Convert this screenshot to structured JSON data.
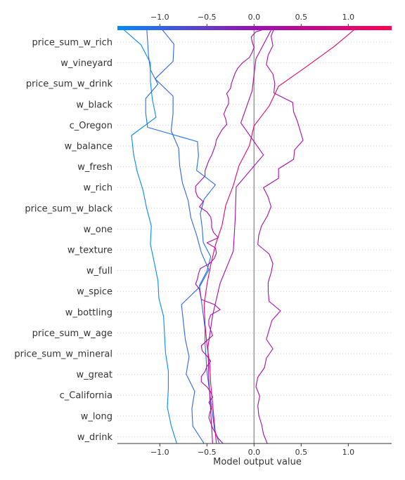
{
  "chart_data": {
    "type": "line",
    "title": "",
    "xlabel": "Model output value",
    "ylabel": "",
    "xlim": [
      -1.45,
      1.46
    ],
    "base_value": 0.0,
    "grid": "dotted horizontal per feature",
    "xticks": [
      -1.0,
      -0.5,
      0.0,
      0.5,
      1.0
    ],
    "xtick_labels": [
      "−1.0",
      "−0.5",
      "0.0",
      "0.5",
      "1.0"
    ],
    "features_top_to_bottom": [
      "price_sum_w_rich",
      "w_vineyard",
      "price_sum_w_drink",
      "w_black",
      "c_Oregon",
      "w_balance",
      "w_fresh",
      "w_rich",
      "price_sum_w_black",
      "w_one",
      "w_texture",
      "w_full",
      "w_spice",
      "w_bottling",
      "price_sum_w_age",
      "price_sum_w_mineral",
      "w_great",
      "c_California",
      "w_long",
      "w_drink"
    ],
    "colormap": {
      "low": "#008bfb",
      "mid": "#9a0eb5",
      "high": "#ff0052"
    },
    "series": [
      {
        "values": [
          -0.82,
          -0.88,
          -0.92,
          -0.91,
          -0.91,
          -0.94,
          -0.95,
          -0.96,
          -1.01,
          -1.02,
          -1.06,
          -1.1,
          -1.09,
          -1.14,
          -1.18,
          -1.24,
          -1.28,
          -1.3,
          -1.04,
          -1.08,
          -1.1,
          -1.1,
          -1.2,
          -1.42
        ]
      },
      {
        "values": [
          -0.53,
          -0.65,
          -0.66,
          -0.63,
          -0.72,
          -0.69,
          -0.73,
          -0.75,
          -0.77,
          -0.58,
          -0.48,
          -0.56,
          -0.61,
          -0.67,
          -0.7,
          -0.76,
          -0.79,
          -0.8,
          -0.88,
          -0.86,
          -0.86,
          -1.05,
          -0.86,
          -0.85,
          -1.0
        ]
      },
      {
        "values": [
          -0.37,
          -0.42,
          -0.44,
          -0.46,
          -0.48,
          -0.5,
          -0.51,
          -0.52,
          -0.52,
          -0.54,
          -0.56,
          -0.58,
          -0.5,
          -0.46,
          -0.54,
          -0.55,
          -0.57,
          -0.53,
          -0.41,
          -0.61,
          -0.59,
          -0.6,
          -1.13,
          -1.15,
          -1.15,
          -1.02,
          -1.1,
          -1.12,
          -1.13,
          -1.14
        ]
      },
      {
        "values": [
          -0.33,
          -0.38,
          -0.41,
          -0.44,
          -0.46,
          -0.48,
          -0.47,
          -0.45,
          -0.48,
          -0.44,
          -0.46,
          -0.5,
          -0.56,
          -0.56,
          -0.52,
          -0.5,
          -0.46,
          -0.5,
          -0.55,
          -0.56,
          -0.5,
          -0.44,
          -0.46,
          -0.48,
          -0.48,
          -0.46,
          -0.36,
          -0.42,
          -0.56,
          -0.57,
          -0.58,
          -0.62,
          -0.6,
          -0.59,
          -0.57,
          -0.47,
          -0.42,
          -0.4,
          -0.41,
          -0.5,
          -0.38,
          -0.43,
          -0.45,
          -0.45,
          -0.46,
          -0.5,
          -0.58,
          -0.54,
          -0.6,
          -0.62,
          -0.62,
          -0.57,
          -0.52,
          -0.52,
          -0.5,
          -0.48,
          -0.45,
          -0.43,
          -0.41,
          -0.4,
          -0.37,
          -0.34,
          -0.29,
          -0.3,
          -0.32,
          -0.3,
          -0.27,
          -0.27,
          -0.29,
          -0.25,
          -0.24,
          -0.22,
          -0.2,
          -0.17,
          -0.12,
          -0.05,
          -0.02,
          0.0,
          -0.02,
          -0.03,
          0.02,
          0.2
        ]
      },
      {
        "values": [
          -0.44,
          -0.46,
          -0.48,
          -0.49,
          -0.44,
          -0.36,
          -0.22,
          -0.2,
          -0.19,
          0.1,
          -0.14,
          -0.02,
          0.02,
          0.2
        ]
      },
      {
        "values": [
          0.14,
          0.1,
          0.08,
          0.05,
          0.04,
          0.06,
          0.02,
          0.04,
          0.11,
          0.13,
          0.2,
          0.13,
          0.16,
          0.19,
          0.28,
          0.16,
          0.15,
          0.15,
          0.18,
          0.2,
          0.16,
          0.04,
          0.05,
          0.08,
          0.14,
          0.18,
          0.15,
          0.1,
          0.26,
          0.26,
          0.42,
          0.43,
          0.52,
          0.49,
          0.46,
          0.42,
          0.41,
          0.21,
          0.22,
          0.2,
          0.13,
          0.15,
          0.2,
          0.18,
          0.22
        ]
      },
      {
        "values": [
          -0.4,
          -0.42,
          -0.44,
          -0.46,
          -0.47,
          -0.5,
          -0.52,
          -0.53,
          -0.5,
          -0.46,
          -0.41,
          -0.34,
          -0.3,
          -0.22,
          -0.16,
          -0.05,
          0.0,
          0.16,
          0.26,
          0.56,
          0.85,
          1.1
        ]
      }
    ]
  }
}
